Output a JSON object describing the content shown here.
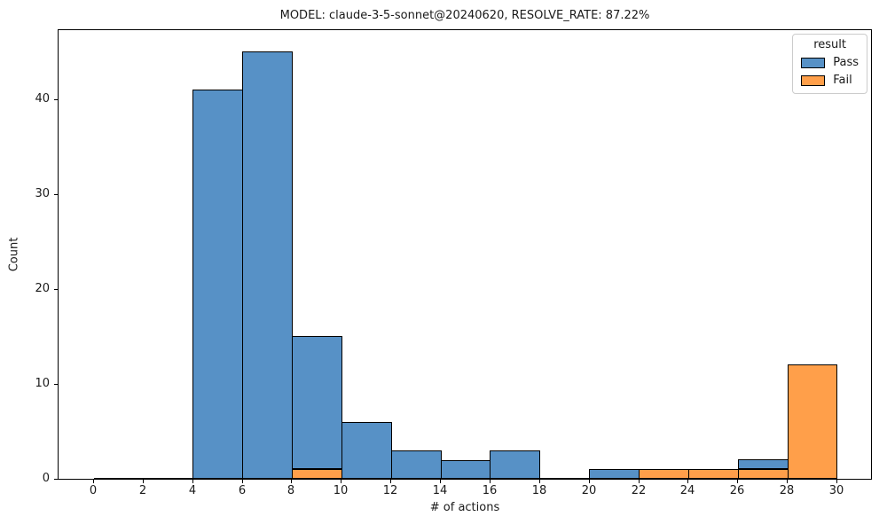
{
  "chart_data": {
    "type": "bar",
    "subtype": "stacked-histogram",
    "title": "MODEL: claude-3-5-sonnet@20240620, RESOLVE_RATE: 87.22%",
    "xlabel": "# of actions",
    "ylabel": "Count",
    "background_color": "#ffffff",
    "edge_color": "#000000",
    "grid": false,
    "bin_width": 2,
    "bin_edges": [
      0,
      2,
      4,
      6,
      8,
      10,
      12,
      14,
      16,
      18,
      20,
      22,
      24,
      26,
      28,
      30
    ],
    "x_ticks": [
      0,
      2,
      4,
      6,
      8,
      10,
      12,
      14,
      16,
      18,
      20,
      22,
      24,
      26,
      28,
      30
    ],
    "y_ticks": [
      0,
      10,
      20,
      30,
      40
    ],
    "xlim": [
      -1.45,
      31.45
    ],
    "ylim": [
      0,
      47.25
    ],
    "stack_order_bottom_to_top": [
      "Fail",
      "Pass"
    ],
    "series": [
      {
        "name": "Pass",
        "color": "#5791c6",
        "values": [
          0,
          0,
          41,
          45,
          14,
          6,
          3,
          2,
          3,
          0,
          1,
          0,
          0,
          1,
          0
        ]
      },
      {
        "name": "Fail",
        "color": "#ff9f4a",
        "values": [
          0,
          0,
          0,
          0,
          1,
          0,
          0,
          0,
          0,
          0,
          0,
          1,
          1,
          1,
          12
        ]
      }
    ],
    "bin_totals_visible_top": [
      0,
      0,
      41,
      45,
      15,
      6,
      3,
      2,
      3,
      0,
      1,
      1,
      1,
      2,
      12
    ],
    "legend": {
      "title": "result",
      "entries": [
        "Pass",
        "Fail"
      ],
      "position": "upper right"
    }
  }
}
